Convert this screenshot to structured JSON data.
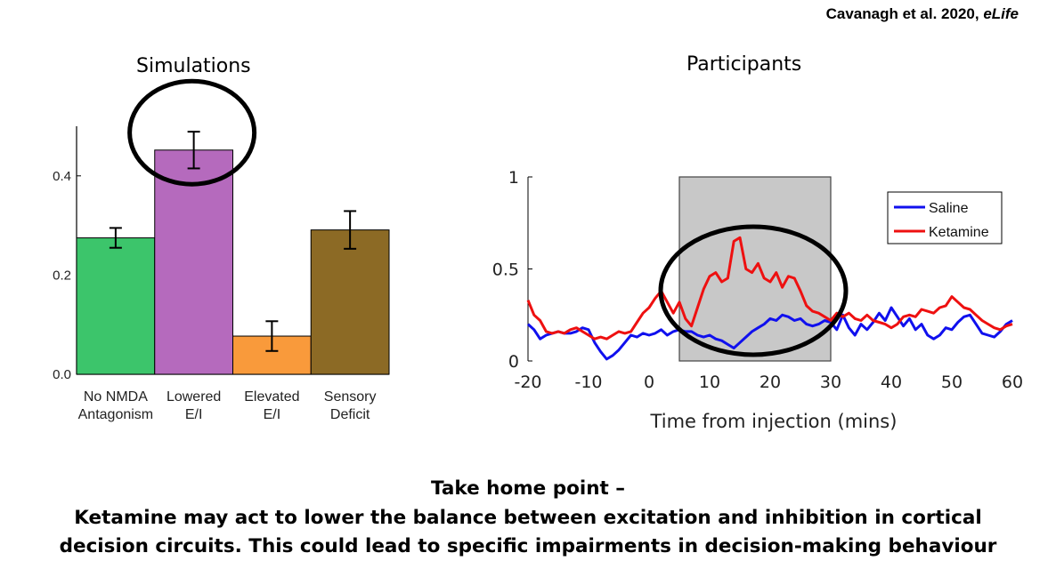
{
  "citation": {
    "authors": "Cavanagh et al. 2020, ",
    "journal": "eLife"
  },
  "chart_data": [
    {
      "type": "bar",
      "title": "Simulations",
      "categories": [
        "No NMDA\nAntagonism",
        "Lowered\nE/I",
        "Elevated\nE/I",
        "Sensory\nDeficit"
      ],
      "values": [
        0.275,
        0.452,
        0.077,
        0.291
      ],
      "errors": [
        0.02,
        0.037,
        0.03,
        0.038
      ],
      "colors": [
        "#3cc56b",
        "#b56abd",
        "#f99a3b",
        "#8c6a25"
      ],
      "yticks": [
        "0.0",
        "0.2",
        "0.4"
      ],
      "ytick_values": [
        0,
        0.2,
        0.4
      ],
      "ylim": [
        0,
        0.5
      ],
      "grid": false
    },
    {
      "type": "line",
      "title": "Participants",
      "xlabel": "Time from injection (mins)",
      "xlim": [
        -20,
        60
      ],
      "ylim": [
        0,
        1
      ],
      "xticks": [
        -20,
        -10,
        0,
        10,
        20,
        30,
        40,
        50,
        60
      ],
      "yticks": [
        "0",
        "0.5",
        "1"
      ],
      "ytick_values": [
        0,
        0.5,
        1
      ],
      "shaded_region": [
        5,
        30
      ],
      "legend_position": "top-right",
      "grid": false,
      "series": [
        {
          "name": "Saline",
          "color": "#1010ee",
          "x": [
            -20,
            -19,
            -18,
            -17,
            -16,
            -15,
            -14,
            -13,
            -12,
            -11,
            -10,
            -9,
            -8,
            -7,
            -6,
            -5,
            -4,
            -3,
            -2,
            -1,
            0,
            1,
            2,
            3,
            4,
            5,
            6,
            7,
            8,
            9,
            10,
            11,
            12,
            13,
            14,
            15,
            16,
            17,
            18,
            19,
            20,
            21,
            22,
            23,
            24,
            25,
            26,
            27,
            28,
            29,
            30,
            31,
            32,
            33,
            34,
            35,
            36,
            37,
            38,
            39,
            40,
            41,
            42,
            43,
            44,
            45,
            46,
            47,
            48,
            49,
            50,
            51,
            52,
            53,
            54,
            55,
            56,
            57,
            58,
            59,
            60
          ],
          "y": [
            0.2,
            0.17,
            0.12,
            0.14,
            0.15,
            0.16,
            0.15,
            0.15,
            0.16,
            0.18,
            0.17,
            0.1,
            0.05,
            0.01,
            0.03,
            0.06,
            0.1,
            0.14,
            0.13,
            0.15,
            0.14,
            0.15,
            0.17,
            0.14,
            0.16,
            0.17,
            0.16,
            0.16,
            0.14,
            0.13,
            0.14,
            0.12,
            0.11,
            0.09,
            0.07,
            0.1,
            0.13,
            0.16,
            0.18,
            0.2,
            0.23,
            0.22,
            0.25,
            0.24,
            0.22,
            0.23,
            0.2,
            0.19,
            0.2,
            0.22,
            0.21,
            0.17,
            0.25,
            0.18,
            0.14,
            0.2,
            0.17,
            0.21,
            0.26,
            0.22,
            0.29,
            0.24,
            0.19,
            0.23,
            0.17,
            0.2,
            0.14,
            0.12,
            0.14,
            0.18,
            0.17,
            0.21,
            0.24,
            0.25,
            0.2,
            0.15,
            0.14,
            0.13,
            0.16,
            0.2,
            0.22
          ]
        },
        {
          "name": "Ketamine",
          "color": "#ee1010",
          "x": [
            -20,
            -19,
            -18,
            -17,
            -16,
            -15,
            -14,
            -13,
            -12,
            -11,
            -10,
            -9,
            -8,
            -7,
            -6,
            -5,
            -4,
            -3,
            -2,
            -1,
            0,
            1,
            2,
            3,
            4,
            5,
            6,
            7,
            8,
            9,
            10,
            11,
            12,
            13,
            14,
            15,
            16,
            17,
            18,
            19,
            20,
            21,
            22,
            23,
            24,
            25,
            26,
            27,
            28,
            29,
            30,
            31,
            32,
            33,
            34,
            35,
            36,
            37,
            38,
            39,
            40,
            41,
            42,
            43,
            44,
            45,
            46,
            47,
            48,
            49,
            50,
            51,
            52,
            53,
            54,
            55,
            56,
            57,
            58,
            59,
            60
          ],
          "y": [
            0.33,
            0.25,
            0.22,
            0.16,
            0.15,
            0.16,
            0.15,
            0.17,
            0.18,
            0.16,
            0.14,
            0.12,
            0.13,
            0.12,
            0.14,
            0.16,
            0.15,
            0.16,
            0.21,
            0.26,
            0.29,
            0.34,
            0.38,
            0.32,
            0.26,
            0.32,
            0.23,
            0.19,
            0.29,
            0.39,
            0.46,
            0.48,
            0.43,
            0.45,
            0.65,
            0.67,
            0.5,
            0.48,
            0.53,
            0.45,
            0.43,
            0.48,
            0.4,
            0.46,
            0.45,
            0.38,
            0.3,
            0.27,
            0.26,
            0.24,
            0.22,
            0.26,
            0.24,
            0.26,
            0.23,
            0.22,
            0.25,
            0.22,
            0.21,
            0.2,
            0.18,
            0.2,
            0.24,
            0.25,
            0.24,
            0.28,
            0.27,
            0.26,
            0.29,
            0.3,
            0.35,
            0.32,
            0.29,
            0.28,
            0.25,
            0.22,
            0.2,
            0.18,
            0.17,
            0.19,
            0.2
          ]
        }
      ]
    }
  ],
  "footer": {
    "line1": "Take home point –",
    "line2": "Ketamine may act to lower the balance between excitation and inhibition in cortical",
    "line3": "decision circuits. This could lead to specific impairments in decision-making behaviour"
  }
}
